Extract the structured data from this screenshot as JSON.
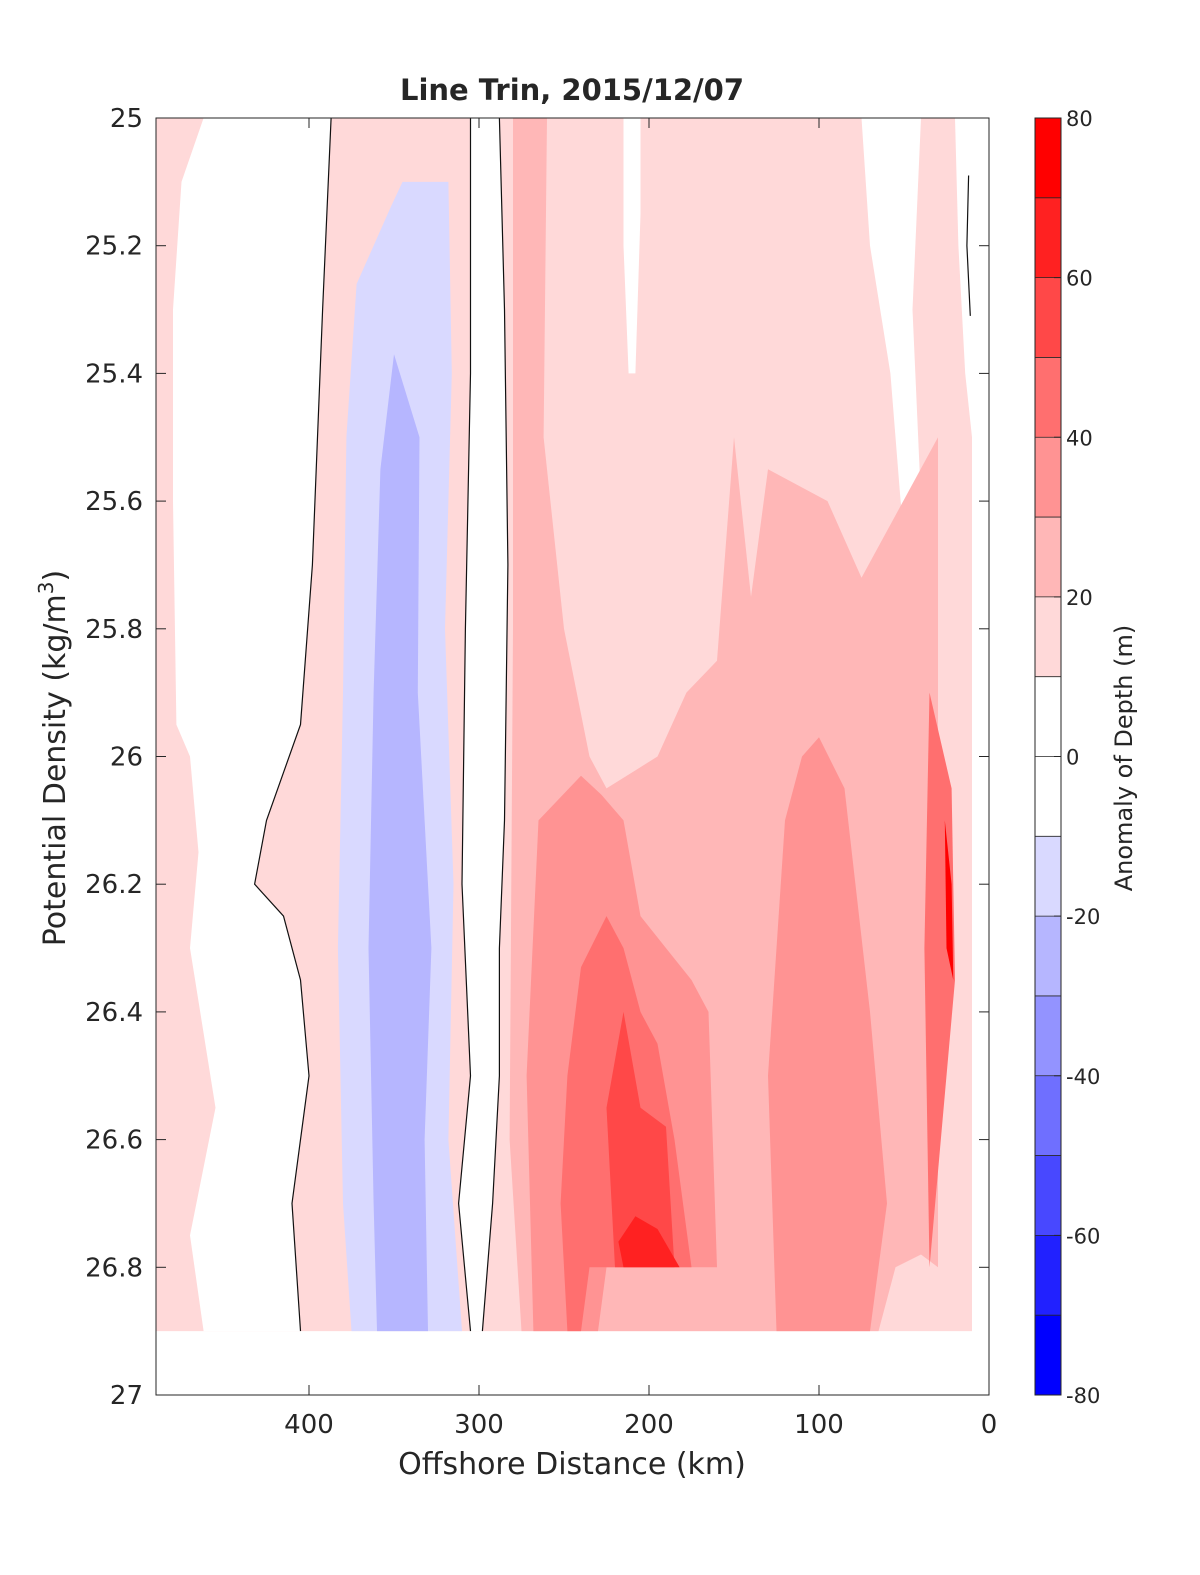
{
  "chart_data": {
    "type": "heatmap",
    "title": "Line Trin, 2015/12/07",
    "xlabel": "Offshore Distance (km)",
    "ylabel_main": "Potential Density (kg/m",
    "ylabel_sup": "3",
    "ylabel_close": ")",
    "xlim": [
      490,
      0
    ],
    "ylim": [
      25,
      27
    ],
    "x_reversed": true,
    "y_reversed": true,
    "x_ticks": [
      400,
      300,
      200,
      100,
      0
    ],
    "y_ticks": [
      25,
      25.2,
      25.4,
      25.6,
      25.8,
      26,
      26.2,
      26.4,
      26.6,
      26.8,
      27
    ],
    "y_tick_labels": [
      "25",
      "25.2",
      "25.4",
      "25.6",
      "25.8",
      "26",
      "26.2",
      "26.4",
      "26.6",
      "26.8",
      "27"
    ],
    "colorbar": {
      "label": "Anomaly of Depth (m)",
      "range": [
        -80,
        80
      ],
      "ticks": [
        80,
        60,
        40,
        20,
        0,
        -20,
        -40,
        -60,
        -80
      ],
      "levels": [
        {
          "from": 70,
          "to": 80,
          "color": "#ff0000"
        },
        {
          "from": 60,
          "to": 70,
          "color": "#ff2121"
        },
        {
          "from": 50,
          "to": 60,
          "color": "#ff4848"
        },
        {
          "from": 40,
          "to": 50,
          "color": "#ff6f6f"
        },
        {
          "from": 30,
          "to": 40,
          "color": "#ff9393"
        },
        {
          "from": 20,
          "to": 30,
          "color": "#ffb7b7"
        },
        {
          "from": 10,
          "to": 20,
          "color": "#ffd9d9"
        },
        {
          "from": 0,
          "to": 10,
          "color": "#ffffff"
        },
        {
          "from": -10,
          "to": 0,
          "color": "#ffffff"
        },
        {
          "from": -20,
          "to": -10,
          "color": "#d9d9ff"
        },
        {
          "from": -30,
          "to": -20,
          "color": "#b6b6ff"
        },
        {
          "from": -40,
          "to": -30,
          "color": "#9393ff"
        },
        {
          "from": -50,
          "to": -40,
          "color": "#6f6fff"
        },
        {
          "from": -60,
          "to": -50,
          "color": "#4848ff"
        },
        {
          "from": -70,
          "to": -60,
          "color": "#2121ff"
        },
        {
          "from": -80,
          "to": -70,
          "color": "#0000ff"
        }
      ]
    },
    "data_coverage": {
      "x": [
        490,
        10
      ],
      "y": [
        25,
        26.9
      ]
    },
    "regions": [
      {
        "value": 15,
        "points": [
          [
            490,
            25
          ],
          [
            10,
            25
          ],
          [
            10,
            26.9
          ],
          [
            490,
            26.9
          ]
        ]
      },
      {
        "value": 0,
        "points": [
          [
            462,
            25
          ],
          [
            387,
            25
          ],
          [
            392,
            25.3
          ],
          [
            398,
            25.7
          ],
          [
            405,
            25.95
          ],
          [
            425,
            26.1
          ],
          [
            432,
            26.2
          ],
          [
            415,
            26.25
          ],
          [
            405,
            26.35
          ],
          [
            400,
            26.5
          ],
          [
            410,
            26.7
          ],
          [
            405,
            26.9
          ],
          [
            462,
            26.9
          ],
          [
            470,
            26.75
          ],
          [
            455,
            26.55
          ],
          [
            470,
            26.3
          ],
          [
            465,
            26.15
          ],
          [
            470,
            26.0
          ],
          [
            478,
            25.95
          ],
          [
            480,
            25.6
          ],
          [
            480,
            25.3
          ],
          [
            475,
            25.1
          ]
        ]
      },
      {
        "value": 0,
        "points": [
          [
            305,
            25
          ],
          [
            288,
            25
          ],
          [
            285,
            25.3
          ],
          [
            283,
            25.7
          ],
          [
            285,
            26.1
          ],
          [
            288,
            26.3
          ],
          [
            288,
            26.5
          ],
          [
            292,
            26.7
          ],
          [
            298,
            26.9
          ],
          [
            305,
            26.9
          ],
          [
            312,
            26.7
          ],
          [
            305,
            26.5
          ],
          [
            310,
            26.2
          ],
          [
            308,
            25.8
          ],
          [
            305,
            25.4
          ]
        ]
      },
      {
        "value": 0,
        "points": [
          [
            215,
            25
          ],
          [
            205,
            25
          ],
          [
            205,
            25.15
          ],
          [
            208,
            25.4
          ],
          [
            212,
            25.4
          ],
          [
            215,
            25.2
          ]
        ]
      },
      {
        "value": 0,
        "points": [
          [
            75,
            25
          ],
          [
            40,
            25
          ],
          [
            45,
            25.3
          ],
          [
            40,
            25.6
          ],
          [
            48,
            25.7
          ],
          [
            52,
            25.6
          ],
          [
            58,
            25.4
          ],
          [
            70,
            25.2
          ]
        ]
      },
      {
        "value": 0,
        "points": [
          [
            20,
            25
          ],
          [
            10,
            25
          ],
          [
            10,
            25.5
          ],
          [
            14,
            25.4
          ],
          [
            18,
            25.2
          ]
        ]
      },
      {
        "value": -15,
        "points": [
          [
            375,
            26.9
          ],
          [
            310,
            26.9
          ],
          [
            318,
            26.6
          ],
          [
            315,
            26.2
          ],
          [
            320,
            25.8
          ],
          [
            316,
            25.4
          ],
          [
            318,
            25.1
          ],
          [
            345,
            25.1
          ],
          [
            352,
            25.14
          ],
          [
            362,
            25.2
          ],
          [
            372,
            25.26
          ],
          [
            378,
            25.5
          ],
          [
            380,
            25.9
          ],
          [
            383,
            26.3
          ],
          [
            380,
            26.7
          ]
        ]
      },
      {
        "value": -25,
        "points": [
          [
            360,
            26.9
          ],
          [
            330,
            26.9
          ],
          [
            332,
            26.6
          ],
          [
            328,
            26.3
          ],
          [
            336,
            25.9
          ],
          [
            335,
            25.5
          ],
          [
            350,
            25.37
          ],
          [
            358,
            25.55
          ],
          [
            362,
            25.9
          ],
          [
            365,
            26.3
          ],
          [
            362,
            26.7
          ]
        ]
      },
      {
        "value": 25,
        "points": [
          [
            280,
            25
          ],
          [
            260,
            25
          ],
          [
            262,
            25.5
          ],
          [
            250,
            25.8
          ],
          [
            235,
            26.0
          ],
          [
            225,
            26.05
          ],
          [
            195,
            26.0
          ],
          [
            178,
            25.9
          ],
          [
            160,
            25.85
          ],
          [
            150,
            25.5
          ],
          [
            140,
            25.75
          ],
          [
            130,
            25.55
          ],
          [
            95,
            25.6
          ],
          [
            75,
            25.72
          ],
          [
            30,
            25.5
          ],
          [
            30,
            26.8
          ],
          [
            40,
            26.78
          ],
          [
            55,
            26.8
          ],
          [
            65,
            26.9
          ],
          [
            275,
            26.9
          ],
          [
            282,
            26.6
          ],
          [
            280,
            25.8
          ]
        ]
      },
      {
        "value": 35,
        "points": [
          [
            268,
            26.9
          ],
          [
            272,
            26.5
          ],
          [
            265,
            26.1
          ],
          [
            240,
            26.03
          ],
          [
            228,
            26.06
          ],
          [
            215,
            26.1
          ],
          [
            205,
            26.25
          ],
          [
            190,
            26.3
          ],
          [
            175,
            26.35
          ],
          [
            165,
            26.4
          ],
          [
            160,
            26.8
          ],
          [
            225,
            26.8
          ],
          [
            230,
            26.9
          ]
        ]
      },
      {
        "value": 35,
        "points": [
          [
            125,
            26.9
          ],
          [
            130,
            26.5
          ],
          [
            120,
            26.1
          ],
          [
            110,
            26.0
          ],
          [
            100,
            25.97
          ],
          [
            85,
            26.05
          ],
          [
            70,
            26.4
          ],
          [
            60,
            26.7
          ],
          [
            70,
            26.9
          ]
        ]
      },
      {
        "value": 45,
        "points": [
          [
            248,
            26.9
          ],
          [
            252,
            26.7
          ],
          [
            248,
            26.5
          ],
          [
            240,
            26.33
          ],
          [
            225,
            26.25
          ],
          [
            215,
            26.3
          ],
          [
            205,
            26.4
          ],
          [
            195,
            26.45
          ],
          [
            185,
            26.6
          ],
          [
            175,
            26.8
          ],
          [
            235,
            26.8
          ],
          [
            240,
            26.9
          ]
        ]
      },
      {
        "value": 55,
        "points": [
          [
            220,
            26.8
          ],
          [
            225,
            26.55
          ],
          [
            215,
            26.4
          ],
          [
            205,
            26.55
          ],
          [
            190,
            26.58
          ],
          [
            185,
            26.8
          ]
        ]
      },
      {
        "value": 65,
        "points": [
          [
            215,
            26.8
          ],
          [
            218,
            26.76
          ],
          [
            208,
            26.72
          ],
          [
            195,
            26.74
          ],
          [
            182,
            26.8
          ]
        ]
      },
      {
        "value": 45,
        "points": [
          [
            35,
            25.9
          ],
          [
            22,
            26.05
          ],
          [
            20,
            26.35
          ],
          [
            35,
            26.8
          ],
          [
            38,
            26.3
          ]
        ]
      },
      {
        "value": 75,
        "points": [
          [
            26,
            26.1
          ],
          [
            22,
            26.2
          ],
          [
            21,
            26.35
          ],
          [
            25,
            26.3
          ]
        ]
      }
    ],
    "zero_contours": [
      [
        [
          387,
          25
        ],
        [
          392,
          25.3
        ],
        [
          398,
          25.7
        ],
        [
          405,
          25.95
        ],
        [
          425,
          26.1
        ],
        [
          432,
          26.2
        ],
        [
          415,
          26.25
        ],
        [
          405,
          26.35
        ],
        [
          400,
          26.5
        ],
        [
          410,
          26.7
        ],
        [
          405,
          26.9
        ]
      ],
      [
        [
          305,
          25
        ],
        [
          305,
          25.4
        ],
        [
          308,
          25.8
        ],
        [
          310,
          26.2
        ],
        [
          305,
          26.5
        ],
        [
          312,
          26.7
        ],
        [
          305,
          26.9
        ]
      ],
      [
        [
          288,
          25
        ],
        [
          285,
          25.3
        ],
        [
          283,
          25.7
        ],
        [
          285,
          26.1
        ],
        [
          288,
          26.3
        ],
        [
          288,
          26.5
        ],
        [
          292,
          26.7
        ],
        [
          298,
          26.9
        ]
      ],
      [
        [
          12,
          25.09
        ],
        [
          13,
          25.2
        ],
        [
          11,
          25.31
        ]
      ]
    ]
  }
}
